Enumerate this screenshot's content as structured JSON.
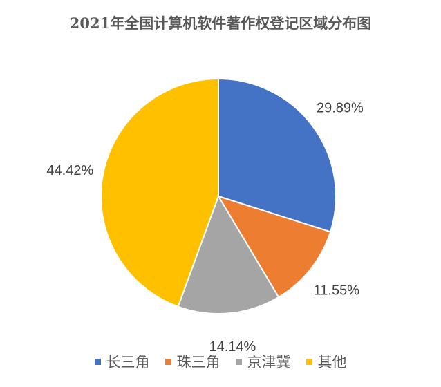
{
  "chart_data": {
    "type": "pie",
    "title": "2021年全国计算机软件著作权登记区域分布图",
    "categories": [
      "长三角",
      "珠三角",
      "京津冀",
      "其他"
    ],
    "values": [
      29.89,
      11.55,
      14.14,
      44.42
    ],
    "data_labels": [
      "29.89%",
      "11.55%",
      "14.14%",
      "44.42%"
    ],
    "colors": [
      "#4472C4",
      "#ED7D31",
      "#A5A5A5",
      "#FFC000"
    ],
    "start_angle": "top",
    "direction": "clockwise",
    "legend_position": "bottom"
  }
}
